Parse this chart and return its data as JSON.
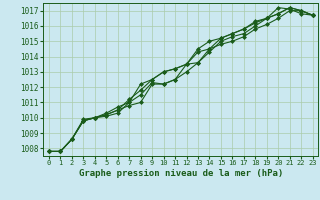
{
  "title": "Graphe pression niveau de la mer (hPa)",
  "bg_color": "#cbe8f0",
  "grid_color": "#aaccaa",
  "line_color": "#1a5c1a",
  "marker_color": "#1a5c1a",
  "xlim": [
    -0.5,
    23.5
  ],
  "ylim": [
    1007.5,
    1017.5
  ],
  "yticks": [
    1008,
    1009,
    1010,
    1011,
    1012,
    1013,
    1014,
    1015,
    1016,
    1017
  ],
  "xticks": [
    0,
    1,
    2,
    3,
    4,
    5,
    6,
    7,
    8,
    9,
    10,
    11,
    12,
    13,
    14,
    15,
    16,
    17,
    18,
    19,
    20,
    21,
    22,
    23
  ],
  "series": [
    [
      1007.8,
      1007.8,
      1008.6,
      1009.8,
      1010.0,
      1010.2,
      1010.5,
      1010.8,
      1011.0,
      1012.2,
      1012.2,
      1012.5,
      1013.5,
      1013.6,
      1014.3,
      1015.0,
      1015.3,
      1015.5,
      1016.0,
      1016.5,
      1017.2,
      1017.1,
      1016.8,
      1016.7
    ],
    [
      1007.8,
      1007.8,
      1008.6,
      1009.8,
      1010.0,
      1010.1,
      1010.3,
      1011.0,
      1011.5,
      1012.3,
      1012.2,
      1012.5,
      1013.0,
      1013.6,
      1014.5,
      1014.8,
      1015.0,
      1015.3,
      1015.8,
      1016.1,
      1016.5,
      1017.0,
      1017.0,
      1016.7
    ],
    [
      1007.8,
      1007.8,
      1008.6,
      1009.8,
      1010.0,
      1010.2,
      1010.5,
      1011.2,
      1011.8,
      1012.5,
      1013.0,
      1013.2,
      1013.5,
      1014.3,
      1014.5,
      1015.2,
      1015.5,
      1015.8,
      1016.3,
      1016.5,
      1016.8,
      1017.2,
      1017.0,
      1016.7
    ],
    [
      1007.8,
      1007.8,
      1008.6,
      1009.9,
      1010.0,
      1010.3,
      1010.7,
      1011.0,
      1012.2,
      1012.5,
      1013.0,
      1013.2,
      1013.5,
      1014.5,
      1015.0,
      1015.2,
      1015.5,
      1015.8,
      1016.2,
      1016.5,
      1016.8,
      1017.2,
      1017.0,
      1016.7
    ]
  ]
}
